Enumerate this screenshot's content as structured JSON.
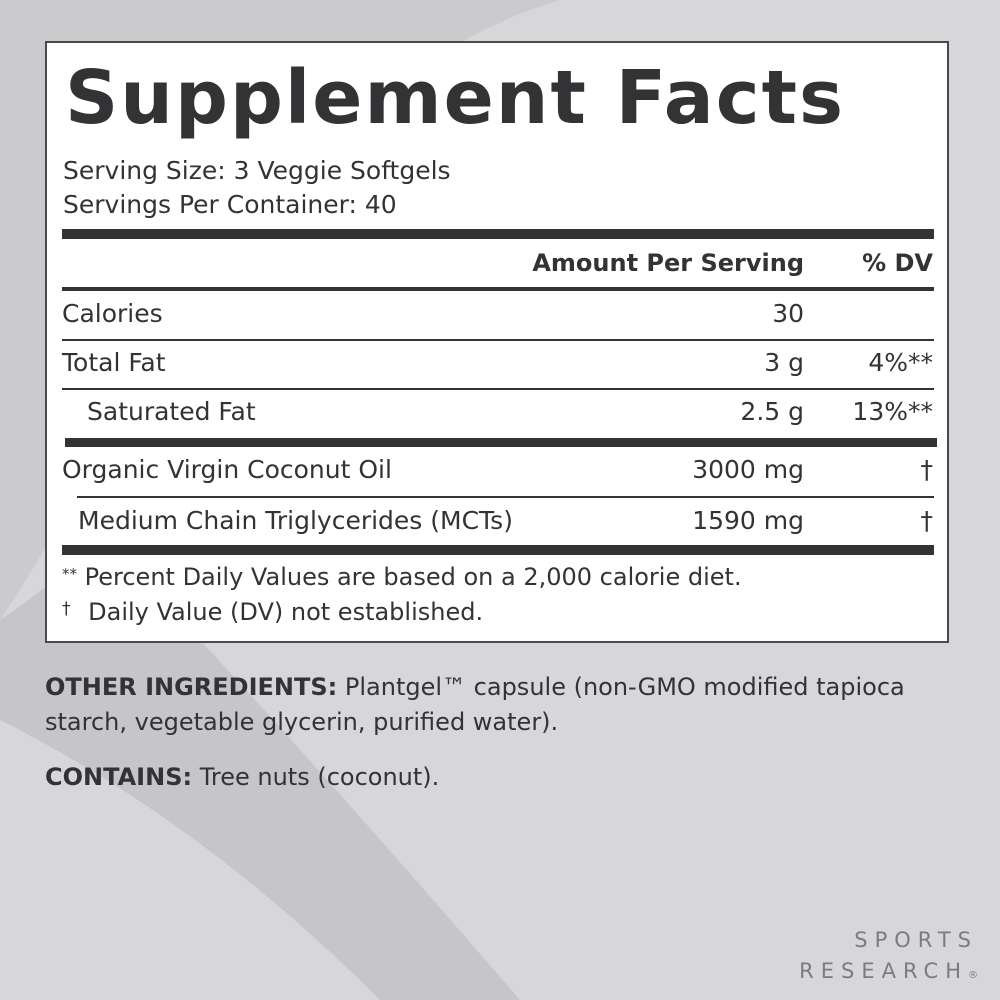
{
  "panel": {
    "title": "Supplement Facts",
    "serving_size": "Serving Size: 3 Veggie Softgels",
    "servings_per_container": "Servings Per Container: 40",
    "header": {
      "amount": "Amount Per Serving",
      "dv": "% DV"
    },
    "rows": [
      {
        "name": "Calories",
        "amount": "30",
        "dv": ""
      },
      {
        "name": "Total Fat",
        "amount": "3 g",
        "dv": "4%**"
      },
      {
        "name": "Saturated Fat",
        "amount": "2.5 g",
        "dv": "13%**"
      },
      {
        "name": "Organic Virgin Coconut Oil",
        "amount": "3000 mg",
        "dv": "†"
      },
      {
        "name": "Medium Chain Triglycerides (MCTs)",
        "amount": "1590 mg",
        "dv": "†"
      }
    ],
    "footnotes": [
      {
        "mark": "**",
        "text": "Percent Daily Values are based on a 2,000 calorie diet."
      },
      {
        "mark": "†",
        "text": "Daily Value (DV) not established."
      }
    ]
  },
  "other_ingredients": {
    "label": "OTHER INGREDIENTS:",
    "text": "Plantgel™ capsule (non-GMO modified tapioca starch, vegetable glycerin, purified water)."
  },
  "contains": {
    "label": "CONTAINS:",
    "text": "Tree nuts (coconut)."
  },
  "logo": {
    "line1": "SPORTS",
    "line2": "RESEARCH",
    "mark": "®"
  },
  "colors": {
    "background": "#d7d7da",
    "text": "#333335",
    "logo": "#7c7c7e"
  }
}
